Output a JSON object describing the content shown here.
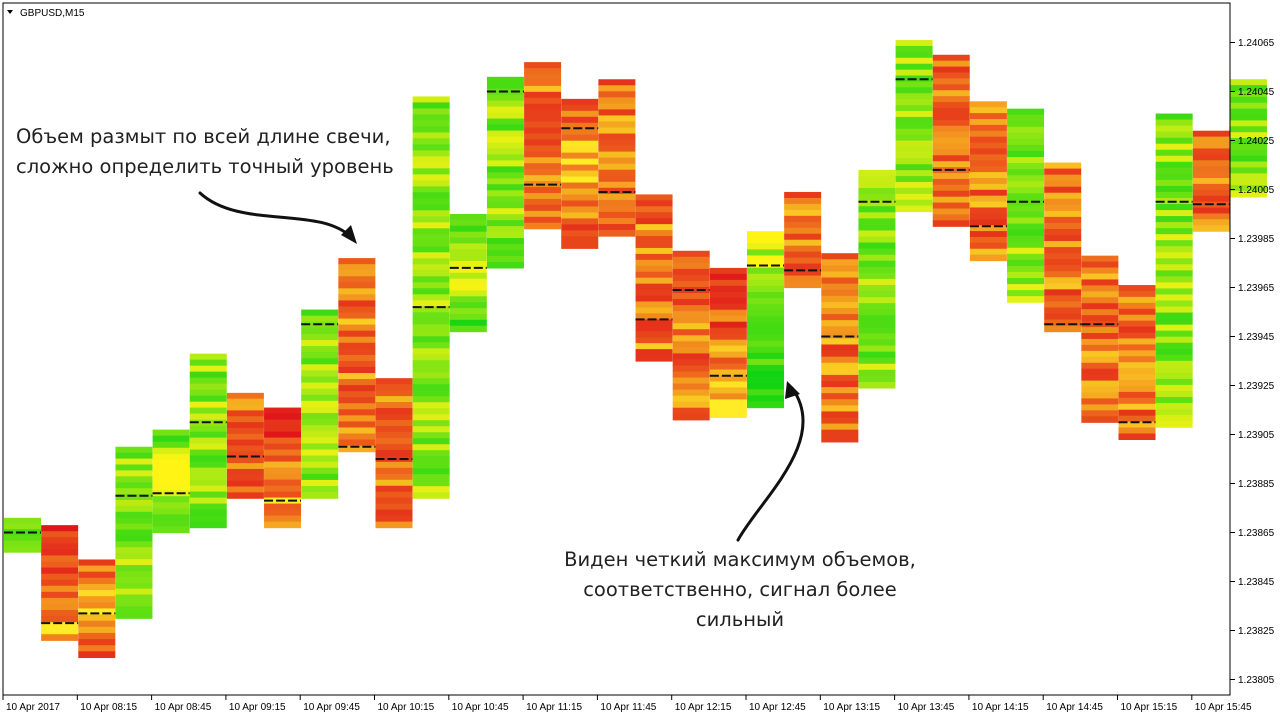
{
  "window": {
    "symbol_title": "GBPUSD,M15"
  },
  "annotations": [
    "Объем размыт по всей длине свечи,\nсложно определить точный уровень",
    "Виден четкий максимум объемов,\nсоответственно, сигнал более\nсильный"
  ],
  "colors": {
    "bull": "#12d412",
    "bear": "#e0161a",
    "poc_line": "#111111",
    "grid": "#000000"
  },
  "chart_data": {
    "type": "candlestick_volume_profile",
    "symbol": "GBPUSD",
    "timeframe": "M15",
    "ylim": [
      1.238,
      1.24072
    ],
    "y_ticks": [
      "1.24065",
      "1.24045",
      "1.24025",
      "1.24005",
      "1.23985",
      "1.23965",
      "1.23945",
      "1.23925",
      "1.23905",
      "1.23885",
      "1.23865",
      "1.23845",
      "1.23825",
      "1.23805"
    ],
    "x_ticks": [
      "10 Apr 2017",
      "10 Apr 08:15",
      "10 Apr 08:45",
      "10 Apr 09:15",
      "10 Apr 09:45",
      "10 Apr 10:15",
      "10 Apr 10:45",
      "10 Apr 11:15",
      "10 Apr 11:45",
      "10 Apr 12:15",
      "10 Apr 12:45",
      "10 Apr 13:15",
      "10 Apr 13:45",
      "10 Apr 14:15",
      "10 Apr 14:45",
      "10 Apr 15:15",
      "10 Apr 15:45"
    ],
    "bars": [
      {
        "open": 1.23857,
        "close": 1.23871,
        "poc": 1.23865,
        "profile": "flat"
      },
      {
        "open": 1.23868,
        "close": 1.23821,
        "poc": 1.23828,
        "profile": "low"
      },
      {
        "open": 1.23854,
        "close": 1.23814,
        "poc": 1.23832,
        "profile": "mid"
      },
      {
        "open": 1.2383,
        "close": 1.239,
        "poc": 1.2388,
        "profile": "flat"
      },
      {
        "open": 1.23865,
        "close": 1.23907,
        "poc": 1.23881,
        "profile": "mid"
      },
      {
        "open": 1.23867,
        "close": 1.23938,
        "poc": 1.2391,
        "profile": "flat"
      },
      {
        "open": 1.23922,
        "close": 1.23879,
        "poc": 1.23896,
        "profile": "flat"
      },
      {
        "open": 1.23916,
        "close": 1.23867,
        "poc": 1.23878,
        "profile": "low"
      },
      {
        "open": 1.23879,
        "close": 1.23956,
        "poc": 1.2395,
        "profile": "flat"
      },
      {
        "open": 1.23977,
        "close": 1.23898,
        "poc": 1.239,
        "profile": "flat"
      },
      {
        "open": 1.23928,
        "close": 1.23867,
        "poc": 1.23895,
        "profile": "flat"
      },
      {
        "open": 1.23879,
        "close": 1.24043,
        "poc": 1.23957,
        "profile": "flat"
      },
      {
        "open": 1.23947,
        "close": 1.23995,
        "poc": 1.23973,
        "profile": "mid"
      },
      {
        "open": 1.23973,
        "close": 1.24051,
        "poc": 1.24045,
        "profile": "flat"
      },
      {
        "open": 1.24057,
        "close": 1.23989,
        "poc": 1.24007,
        "profile": "flat"
      },
      {
        "open": 1.24042,
        "close": 1.23981,
        "poc": 1.2403,
        "profile": "mid"
      },
      {
        "open": 1.2405,
        "close": 1.23986,
        "poc": 1.24004,
        "profile": "flat"
      },
      {
        "open": 1.24003,
        "close": 1.23935,
        "poc": 1.23952,
        "profile": "flat"
      },
      {
        "open": 1.2398,
        "close": 1.23911,
        "poc": 1.23964,
        "profile": "flat"
      },
      {
        "open": 1.23973,
        "close": 1.23912,
        "poc": 1.23929,
        "profile": "low"
      },
      {
        "open": 1.23916,
        "close": 1.23988,
        "poc": 1.23974,
        "profile": "low"
      },
      {
        "open": 1.24004,
        "close": 1.23965,
        "poc": 1.23972,
        "profile": "flat"
      },
      {
        "open": 1.23979,
        "close": 1.23902,
        "poc": 1.23945,
        "profile": "flat"
      },
      {
        "open": 1.23924,
        "close": 1.24013,
        "poc": 1.24,
        "profile": "flat"
      },
      {
        "open": 1.23996,
        "close": 1.24066,
        "poc": 1.2405,
        "profile": "flat"
      },
      {
        "open": 1.2406,
        "close": 1.2399,
        "poc": 1.24013,
        "profile": "flat"
      },
      {
        "open": 1.24041,
        "close": 1.23976,
        "poc": 1.2399,
        "profile": "flat"
      },
      {
        "open": 1.23959,
        "close": 1.24038,
        "poc": 1.24,
        "profile": "flat"
      },
      {
        "open": 1.24016,
        "close": 1.23947,
        "poc": 1.2395,
        "profile": "flat"
      },
      {
        "open": 1.23978,
        "close": 1.2391,
        "poc": 1.2395,
        "profile": "flat"
      },
      {
        "open": 1.23966,
        "close": 1.23903,
        "poc": 1.2391,
        "profile": "flat"
      },
      {
        "open": 1.23908,
        "close": 1.24036,
        "poc": 1.24,
        "profile": "flat"
      },
      {
        "open": 1.24029,
        "close": 1.23988,
        "poc": 1.23999,
        "profile": "flat"
      },
      {
        "open": 1.24002,
        "close": 1.2405,
        "poc": null,
        "profile": "flat"
      }
    ]
  }
}
